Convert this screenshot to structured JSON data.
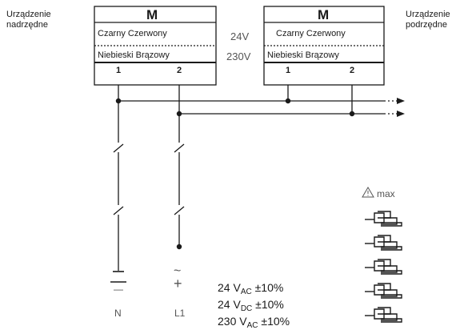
{
  "labels": {
    "master_device": [
      "Urządzenie",
      "nadrzędne"
    ],
    "slave_device": [
      "Urządzenie",
      "podrzędne"
    ]
  },
  "devices": [
    {
      "title": "M",
      "colors_row1": "Czarny  Czerwony",
      "colors_row2": "Niebieski  Brązowy",
      "terminals": [
        "1",
        "2"
      ]
    },
    {
      "title": "M",
      "colors_row1": "Czarny  Czerwony",
      "colors_row2": "Niebieski  Brązowy",
      "terminals": [
        "1",
        "2"
      ]
    }
  ],
  "supply_options": [
    "24V",
    "230V"
  ],
  "terminals": {
    "neutral": "N",
    "line": "L1"
  },
  "polarity": {
    "ac": "~",
    "dc_plus": "+",
    "dc_minus": "—"
  },
  "max_label": "max",
  "device_count": 5,
  "voltages": [
    {
      "value": "24 V",
      "sub": "AC",
      "tol": " ±10%"
    },
    {
      "value": "24 V",
      "sub": "DC",
      "tol": " ±10%"
    },
    {
      "value": "230 V",
      "sub": "AC",
      "tol": " ±10%"
    }
  ],
  "colors": {
    "line": "#1a1a1a",
    "text_grey": "#555555"
  }
}
